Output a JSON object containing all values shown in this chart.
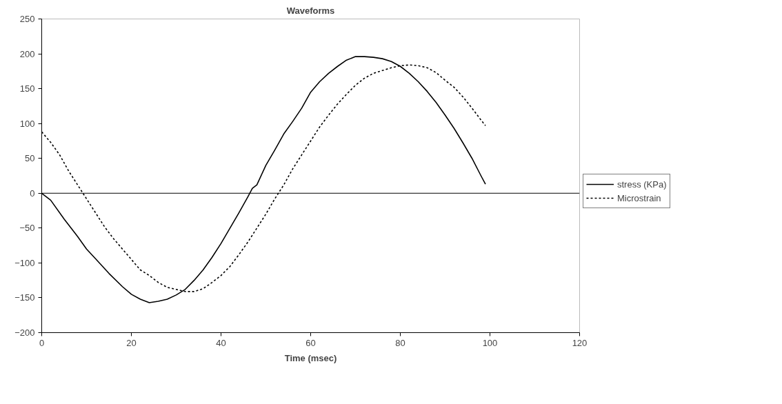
{
  "chart_data": {
    "type": "line",
    "title": "Waveforms",
    "xlabel": "Time (msec)",
    "xlim": [
      0,
      120
    ],
    "xticks": [
      0,
      20,
      40,
      60,
      80,
      100,
      120
    ],
    "ylim": [
      -200,
      250
    ],
    "yticks": [
      -200,
      -150,
      -100,
      -50,
      0,
      50,
      100,
      150,
      200,
      250
    ],
    "grid": false,
    "legend": "right",
    "ref_lines": [
      {
        "axis": "y",
        "value": 0,
        "color": "#000000"
      }
    ],
    "series": [
      {
        "name": "stress (KPa)",
        "color": "#000000",
        "line_style": "solid",
        "x": [
          0,
          2,
          5,
          8,
          10,
          12,
          15,
          18,
          20,
          22,
          24,
          26,
          28,
          30,
          32,
          34,
          36,
          38,
          40,
          42,
          44,
          46,
          47,
          48,
          50,
          52,
          54,
          56,
          58,
          60,
          62,
          64,
          66,
          68,
          70,
          72,
          74,
          76,
          78,
          80,
          82,
          84,
          86,
          88,
          90,
          92,
          94,
          96,
          98,
          99
        ],
        "values": [
          0,
          -10,
          -37,
          -62,
          -80,
          -94,
          -115,
          -134,
          -145,
          -152,
          -157,
          -155,
          -152,
          -146,
          -138,
          -125,
          -110,
          -92,
          -72,
          -50,
          -28,
          -5,
          7,
          12,
          40,
          62,
          85,
          103,
          122,
          145,
          160,
          172,
          182,
          191,
          196,
          196,
          195,
          193,
          189,
          182,
          172,
          160,
          146,
          130,
          112,
          93,
          72,
          50,
          25,
          13
        ]
      },
      {
        "name": "Microstrain",
        "color": "#000000",
        "line_style": "dotted",
        "x": [
          0,
          2,
          4,
          6,
          8,
          10,
          12,
          14,
          16,
          18,
          20,
          22,
          24,
          26,
          28,
          30,
          32,
          34,
          36,
          38,
          40,
          42,
          44,
          46,
          48,
          50,
          52,
          54,
          56,
          58,
          60,
          62,
          64,
          66,
          68,
          70,
          72,
          74,
          76,
          78,
          80,
          82,
          84,
          86,
          88,
          90,
          92,
          94,
          96,
          98,
          99
        ],
        "values": [
          88,
          73,
          55,
          32,
          12,
          -8,
          -28,
          -48,
          -65,
          -80,
          -95,
          -110,
          -118,
          -128,
          -135,
          -138,
          -141,
          -141,
          -137,
          -128,
          -118,
          -105,
          -88,
          -70,
          -50,
          -30,
          -8,
          12,
          35,
          55,
          75,
          95,
          112,
          128,
          142,
          155,
          165,
          172,
          176,
          180,
          183,
          184,
          183,
          180,
          173,
          162,
          152,
          138,
          122,
          105,
          97
        ]
      }
    ]
  }
}
